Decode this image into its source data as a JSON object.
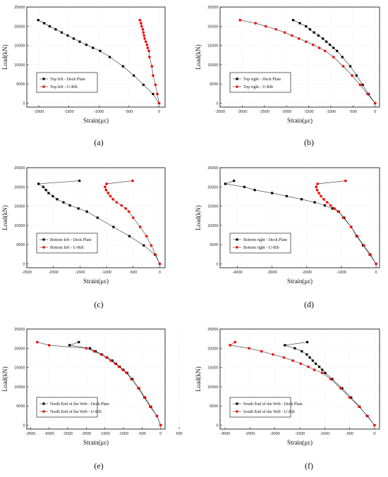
{
  "figure": {
    "captions": [
      "(a)",
      "(b)",
      "(c)",
      "(d)",
      "(e)",
      "(f)"
    ]
  },
  "colors": {
    "deck": "#000000",
    "rib": "#ff0000",
    "grid": "#dddddd"
  },
  "chart_data": [
    {
      "type": "line",
      "caption": "(a)",
      "xlabel": "Strain(με)",
      "ylabel": "Load(kN)",
      "xlim": [
        -2200,
        100
      ],
      "ylim": [
        -1000,
        25000
      ],
      "xticks": [
        -2000,
        -1500,
        -1000,
        -500,
        0
      ],
      "yticks": [
        0,
        5000,
        10000,
        15000,
        20000,
        25000
      ],
      "legend_position": "center-left",
      "grid": true,
      "series": [
        {
          "name": "Top left - Deck Plate",
          "marker": "square",
          "color": "#000000",
          "points": [
            [
              0,
              0
            ],
            [
              -100,
              2400
            ],
            [
              -260,
              4800
            ],
            [
              -420,
              7200
            ],
            [
              -600,
              9600
            ],
            [
              -820,
              12000
            ],
            [
              -980,
              13600
            ],
            [
              -1100,
              14400
            ],
            [
              -1210,
              15200
            ],
            [
              -1320,
              16000
            ],
            [
              -1420,
              16800
            ],
            [
              -1520,
              17600
            ],
            [
              -1620,
              18400
            ],
            [
              -1720,
              19200
            ],
            [
              -1820,
              20000
            ],
            [
              -1910,
              20800
            ],
            [
              -2010,
              21600
            ]
          ]
        },
        {
          "name": "Top left - U-Rib",
          "marker": "circle",
          "color": "#ff0000",
          "points": [
            [
              0,
              0
            ],
            [
              -30,
              2400
            ],
            [
              -60,
              4800
            ],
            [
              -100,
              7200
            ],
            [
              -120,
              9600
            ],
            [
              -160,
              12000
            ],
            [
              -170,
              13600
            ],
            [
              -190,
              14400
            ],
            [
              -200,
              15200
            ],
            [
              -220,
              16000
            ],
            [
              -240,
              16800
            ],
            [
              -250,
              17600
            ],
            [
              -260,
              18400
            ],
            [
              -270,
              19200
            ],
            [
              -290,
              20000
            ],
            [
              -300,
              20800
            ],
            [
              -320,
              21600
            ]
          ]
        }
      ]
    },
    {
      "type": "line",
      "caption": "(b)",
      "xlabel": "Strain(με)",
      "ylabel": "Load(kN)",
      "xlim": [
        -3500,
        100
      ],
      "ylim": [
        -1000,
        25000
      ],
      "xticks": [
        -3500,
        -3000,
        -2500,
        -2000,
        -1500,
        -1000,
        -500,
        0
      ],
      "yticks": [
        0,
        5000,
        10000,
        15000,
        20000,
        25000
      ],
      "legend_position": "center-left",
      "grid": true,
      "series": [
        {
          "name": "Top right - Deck Plate",
          "marker": "square",
          "color": "#000000",
          "points": [
            [
              0,
              0
            ],
            [
              -150,
              2400
            ],
            [
              -280,
              4800
            ],
            [
              -420,
              7200
            ],
            [
              -560,
              9600
            ],
            [
              -740,
              12000
            ],
            [
              -860,
              13600
            ],
            [
              -940,
              14400
            ],
            [
              -1020,
              15200
            ],
            [
              -1100,
              16000
            ],
            [
              -1180,
              16800
            ],
            [
              -1280,
              17600
            ],
            [
              -1380,
              18400
            ],
            [
              -1470,
              19200
            ],
            [
              -1560,
              20000
            ],
            [
              -1700,
              20800
            ],
            [
              -1850,
              21600
            ]
          ]
        },
        {
          "name": "Top right - U-Rib",
          "marker": "circle",
          "color": "#ff0000",
          "points": [
            [
              0,
              0
            ],
            [
              -170,
              2400
            ],
            [
              -340,
              4800
            ],
            [
              -520,
              7200
            ],
            [
              -720,
              9600
            ],
            [
              -940,
              12000
            ],
            [
              -1130,
              13600
            ],
            [
              -1260,
              14400
            ],
            [
              -1400,
              15200
            ],
            [
              -1560,
              16000
            ],
            [
              -1720,
              16800
            ],
            [
              -1880,
              17600
            ],
            [
              -2040,
              18400
            ],
            [
              -2240,
              19200
            ],
            [
              -2470,
              20000
            ],
            [
              -2700,
              20800
            ],
            [
              -3050,
              21600
            ]
          ]
        }
      ]
    },
    {
      "type": "line",
      "caption": "(c)",
      "xlabel": "Strain(με)",
      "ylabel": "Load(kN)",
      "xlim": [
        -2500,
        100
      ],
      "ylim": [
        -1000,
        25000
      ],
      "xticks": [
        -2500,
        -2000,
        -1500,
        -1000,
        -500,
        0
      ],
      "yticks": [
        0,
        5000,
        10000,
        15000,
        20000,
        25000
      ],
      "legend_position": "center-left",
      "grid": true,
      "series": [
        {
          "name": "Bottom left - Deck Plate",
          "marker": "square",
          "color": "#000000",
          "points": [
            [
              0,
              0
            ],
            [
              -90,
              2400
            ],
            [
              -300,
              4800
            ],
            [
              -570,
              7200
            ],
            [
              -870,
              9600
            ],
            [
              -1170,
              12000
            ],
            [
              -1370,
              13600
            ],
            [
              -1530,
              14400
            ],
            [
              -1690,
              15200
            ],
            [
              -1810,
              16000
            ],
            [
              -1930,
              16800
            ],
            [
              -2010,
              17600
            ],
            [
              -2090,
              18400
            ],
            [
              -2140,
              19200
            ],
            [
              -2190,
              20000
            ],
            [
              -2280,
              20800
            ],
            [
              -1510,
              21600
            ]
          ]
        },
        {
          "name": "Bottom left - U-Rib",
          "marker": "circle",
          "color": "#ff0000",
          "points": [
            [
              0,
              0
            ],
            [
              -80,
              2400
            ],
            [
              -160,
              4800
            ],
            [
              -250,
              7200
            ],
            [
              -370,
              9600
            ],
            [
              -500,
              12000
            ],
            [
              -580,
              13600
            ],
            [
              -640,
              14400
            ],
            [
              -720,
              15200
            ],
            [
              -810,
              16000
            ],
            [
              -880,
              16800
            ],
            [
              -930,
              17600
            ],
            [
              -970,
              18400
            ],
            [
              -1010,
              19200
            ],
            [
              -1030,
              20000
            ],
            [
              -1000,
              20800
            ],
            [
              -510,
              21600
            ]
          ]
        }
      ]
    },
    {
      "type": "line",
      "caption": "(d)",
      "xlabel": "Strain(με)",
      "ylabel": "Load(kN)",
      "xlim": [
        -4500,
        100
      ],
      "ylim": [
        -1000,
        25000
      ],
      "xticks": [
        -4000,
        -3000,
        -2000,
        -1000,
        0
      ],
      "yticks": [
        0,
        5000,
        10000,
        15000,
        20000,
        25000
      ],
      "legend_position": "center-left",
      "grid": true,
      "series": [
        {
          "name": "Bottom right - Deck Plate",
          "marker": "square",
          "color": "#000000",
          "points": [
            [
              0,
              0
            ],
            [
              -180,
              2400
            ],
            [
              -380,
              4800
            ],
            [
              -560,
              7200
            ],
            [
              -720,
              9600
            ],
            [
              -920,
              12000
            ],
            [
              -1090,
              13600
            ],
            [
              -1260,
              14400
            ],
            [
              -1480,
              15200
            ],
            [
              -1770,
              16000
            ],
            [
              -2150,
              16800
            ],
            [
              -2580,
              17600
            ],
            [
              -3000,
              18400
            ],
            [
              -3500,
              19200
            ],
            [
              -3800,
              20000
            ],
            [
              -4350,
              20800
            ],
            [
              -4100,
              21600
            ]
          ]
        },
        {
          "name": "Bottom right - U-Rib",
          "marker": "circle",
          "color": "#ff0000",
          "points": [
            [
              0,
              0
            ],
            [
              -160,
              2400
            ],
            [
              -350,
              4800
            ],
            [
              -540,
              7200
            ],
            [
              -720,
              9600
            ],
            [
              -950,
              12000
            ],
            [
              -1070,
              13600
            ],
            [
              -1200,
              14400
            ],
            [
              -1310,
              15200
            ],
            [
              -1410,
              16000
            ],
            [
              -1510,
              16800
            ],
            [
              -1590,
              17600
            ],
            [
              -1650,
              18400
            ],
            [
              -1700,
              19200
            ],
            [
              -1730,
              20000
            ],
            [
              -1690,
              20800
            ],
            [
              -880,
              21600
            ]
          ]
        }
      ]
    },
    {
      "type": "line",
      "caption": "(e)",
      "xlabel": "Strain(με)",
      "ylabel": "Load(kN)",
      "xlim": [
        -3600,
        120
      ],
      "ylim": [
        -1000,
        25000
      ],
      "xticks": [
        -3500,
        -3000,
        -2500,
        -2000,
        -1500,
        -1000,
        -500,
        0,
        500
      ],
      "yticks": [
        0,
        5000,
        10000,
        15000,
        20000,
        25000
      ],
      "legend_position": "bottom-left",
      "grid": true,
      "series": [
        {
          "name": "North End of the Web - Deck Plate",
          "marker": "square",
          "color": "#000000",
          "points": [
            [
              0,
              0
            ],
            [
              -100,
              2400
            ],
            [
              -260,
              4800
            ],
            [
              -420,
              7200
            ],
            [
              -580,
              9600
            ],
            [
              -760,
              12000
            ],
            [
              -900,
              13600
            ],
            [
              -1000,
              14400
            ],
            [
              -1100,
              15200
            ],
            [
              -1200,
              16000
            ],
            [
              -1300,
              16800
            ],
            [
              -1440,
              17600
            ],
            [
              -1580,
              18400
            ],
            [
              -1750,
              19200
            ],
            [
              -1900,
              20000
            ],
            [
              -2450,
              20800
            ],
            [
              -2200,
              21600
            ]
          ]
        },
        {
          "name": "North End of the Web - U-Rib",
          "marker": "circle",
          "color": "#ff0000",
          "points": [
            [
              0,
              0
            ],
            [
              -100,
              2400
            ],
            [
              -280,
              4800
            ],
            [
              -440,
              7200
            ],
            [
              -600,
              9600
            ],
            [
              -790,
              12000
            ],
            [
              -920,
              13600
            ],
            [
              -1020,
              14400
            ],
            [
              -1120,
              15200
            ],
            [
              -1220,
              16000
            ],
            [
              -1340,
              16800
            ],
            [
              -1460,
              17600
            ],
            [
              -1600,
              18400
            ],
            [
              -1790,
              19200
            ],
            [
              -2000,
              20000
            ],
            [
              -3000,
              20800
            ],
            [
              -3320,
              21600
            ]
          ]
        }
      ]
    },
    {
      "type": "line",
      "caption": "(f)",
      "xlabel": "Strain(με)",
      "ylabel": "Load(kN)",
      "xlim": [
        -3100,
        100
      ],
      "ylim": [
        -1000,
        25000
      ],
      "xticks": [
        -3000,
        -2500,
        -2000,
        -1500,
        -1000,
        -500,
        0
      ],
      "yticks": [
        0,
        5000,
        10000,
        15000,
        20000,
        25000
      ],
      "legend_position": "bottom-left",
      "grid": true,
      "series": [
        {
          "name": "South End of the Web - Deck Plate",
          "marker": "square",
          "color": "#000000",
          "points": [
            [
              0,
              0
            ],
            [
              -150,
              2400
            ],
            [
              -300,
              4800
            ],
            [
              -470,
              7200
            ],
            [
              -650,
              9600
            ],
            [
              -850,
              12000
            ],
            [
              -990,
              13600
            ],
            [
              -1050,
              14400
            ],
            [
              -1110,
              15200
            ],
            [
              -1180,
              16000
            ],
            [
              -1240,
              16800
            ],
            [
              -1300,
              17600
            ],
            [
              -1360,
              18400
            ],
            [
              -1460,
              19200
            ],
            [
              -1600,
              20000
            ],
            [
              -1800,
              20800
            ],
            [
              -1350,
              21600
            ]
          ]
        },
        {
          "name": "South End of the Web - U-Rib",
          "marker": "circle",
          "color": "#ff0000",
          "points": [
            [
              0,
              0
            ],
            [
              -140,
              2400
            ],
            [
              -310,
              4800
            ],
            [
              -500,
              7200
            ],
            [
              -680,
              9600
            ],
            [
              -880,
              12000
            ],
            [
              -1050,
              13600
            ],
            [
              -1210,
              14400
            ],
            [
              -1330,
              15200
            ],
            [
              -1480,
              16000
            ],
            [
              -1640,
              16800
            ],
            [
              -1820,
              17600
            ],
            [
              -2040,
              18400
            ],
            [
              -2270,
              19200
            ],
            [
              -2520,
              20000
            ],
            [
              -2900,
              20800
            ],
            [
              -2800,
              21600
            ]
          ]
        }
      ]
    }
  ]
}
